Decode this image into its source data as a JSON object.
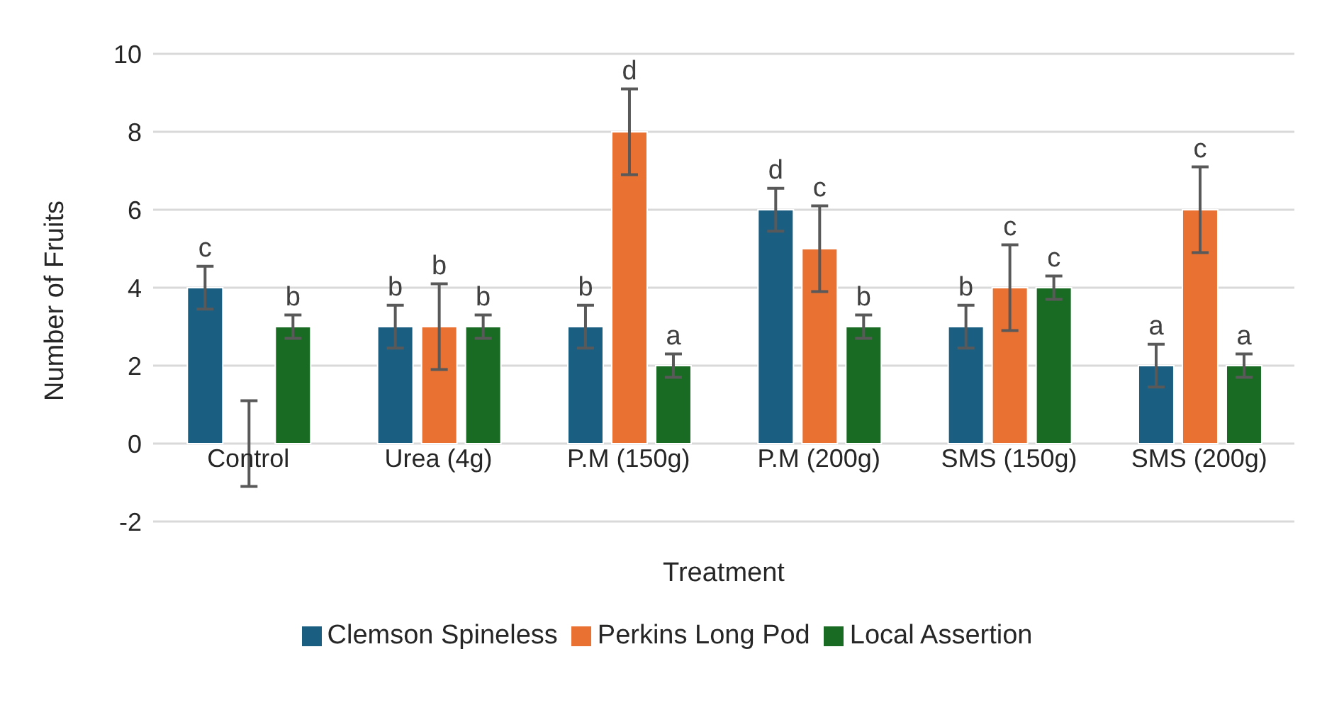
{
  "chart_data": {
    "type": "bar",
    "xlabel": "Treatment",
    "ylabel": "Number of Fruits",
    "categories": [
      "Control",
      "Urea (4g)",
      "P.M (150g)",
      "P.M (200g)",
      "SMS (150g)",
      "SMS (200g)"
    ],
    "series": [
      {
        "name": "Clemson Spineless",
        "color": "#1a5f82",
        "values": [
          4,
          3,
          3,
          6,
          3,
          2
        ],
        "errors": [
          0.55,
          0.55,
          0.55,
          0.55,
          0.55,
          0.55
        ],
        "value_labels": [
          "c",
          "b",
          "b",
          "d",
          "b",
          "a"
        ]
      },
      {
        "name": "Perkins Long Pod",
        "color": "#e97132",
        "values": [
          0,
          3,
          8,
          5,
          4,
          6
        ],
        "errors": [
          1.1,
          1.1,
          1.1,
          1.1,
          1.1,
          1.1
        ],
        "value_labels": [
          null,
          "b",
          "d",
          "c",
          "c",
          "c"
        ]
      },
      {
        "name": "Local Assertion",
        "color": "#196b24",
        "values": [
          3,
          3,
          2,
          3,
          4,
          2
        ],
        "errors": [
          0.3,
          0.3,
          0.3,
          0.3,
          0.3,
          0.3
        ],
        "value_labels": [
          "b",
          "b",
          "a",
          "b",
          "c",
          "a"
        ]
      }
    ],
    "ylim": [
      -2,
      10
    ],
    "yticks": [
      -2,
      0,
      2,
      4,
      6,
      8,
      10
    ],
    "grid": "y",
    "legend": "bottom"
  }
}
